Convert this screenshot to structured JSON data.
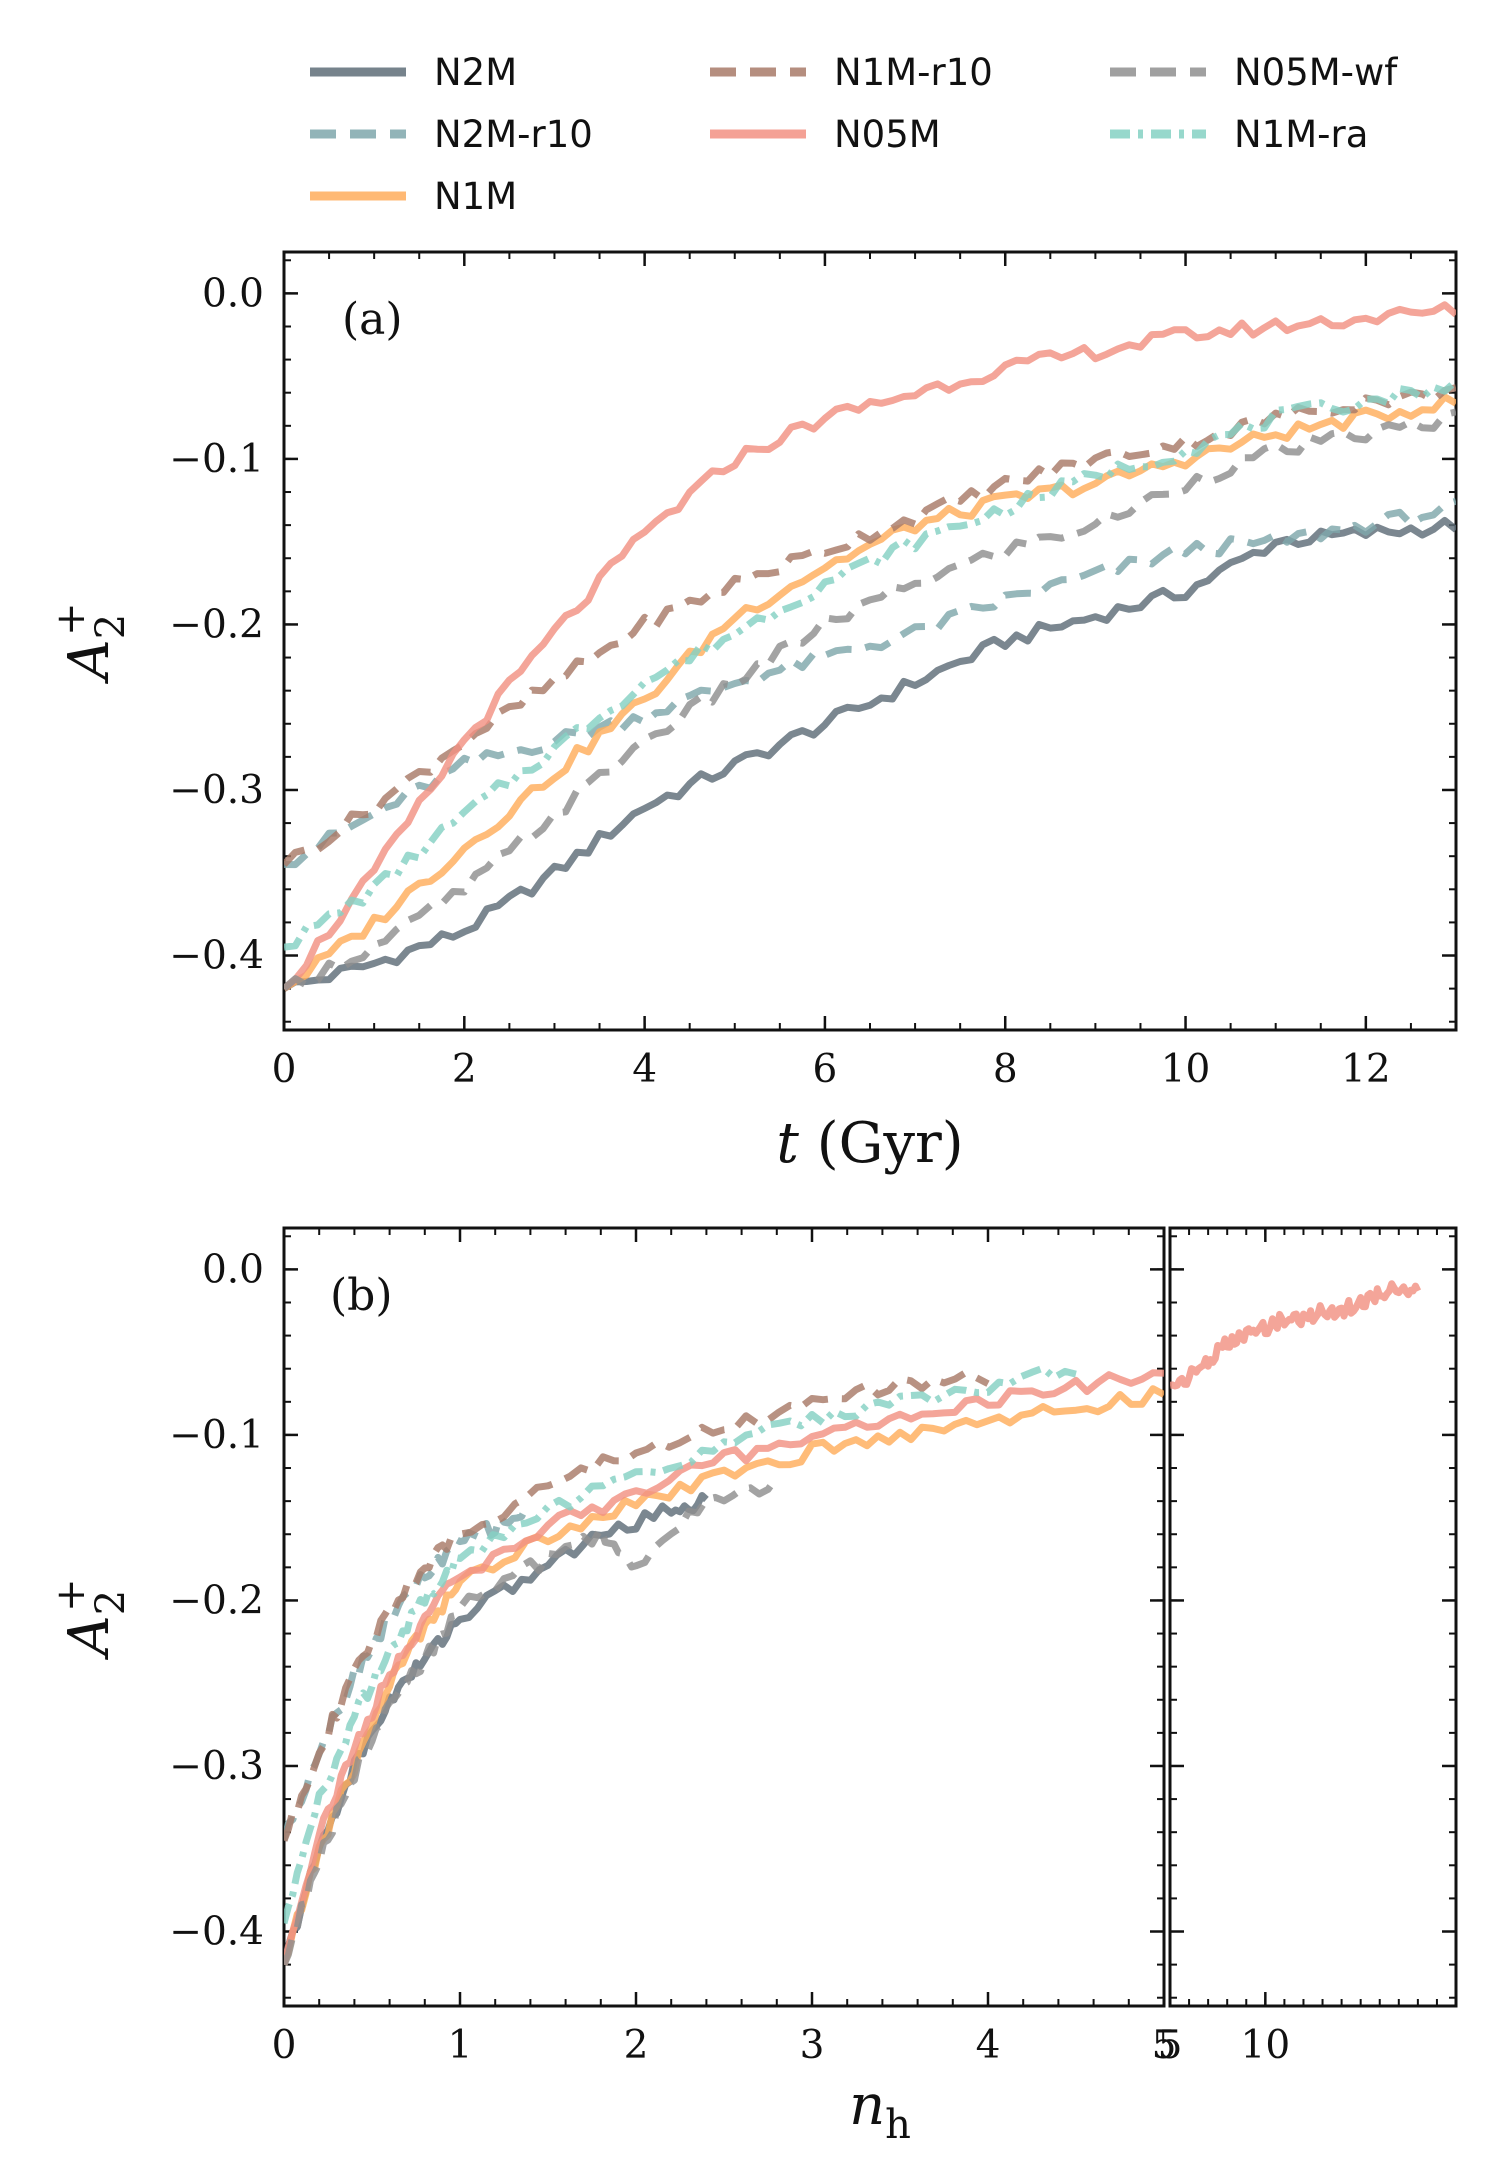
{
  "colors": {
    "N2M": "#5e6d78",
    "N2M-r10": "#7fa7ab",
    "N1M": "#ffad5c",
    "N1M-r10": "#a87a68",
    "N05M": "#f29183",
    "N05M-wf": "#8f8f8f",
    "N1M-ra": "#85d1c3"
  },
  "legend": {
    "col1": [
      "N2M",
      "N2M-r10",
      "N1M"
    ],
    "col2": [
      "N1M-r10",
      "N05M"
    ],
    "col3": [
      "N05M-wf",
      "N1M-ra"
    ]
  },
  "chart_data": [
    {
      "type": "line",
      "panel_label": "(a)",
      "xlabel": "t (Gyr)",
      "ylabel": "A2+",
      "xlim": [
        0,
        13
      ],
      "ylim": [
        -0.445,
        0.025
      ],
      "xticks": [
        "0",
        "2",
        "4",
        "6",
        "8",
        "10",
        "12"
      ],
      "yticks": [
        "0.0",
        "−0.1",
        "−0.2",
        "−0.3",
        "−0.4"
      ],
      "series": [
        {
          "name": "N2M",
          "style": "solid",
          "x": [
            0,
            1,
            2,
            3,
            4,
            5,
            6,
            7,
            8,
            9,
            10,
            11,
            12,
            13
          ],
          "y": [
            -0.42,
            -0.405,
            -0.385,
            -0.35,
            -0.31,
            -0.285,
            -0.26,
            -0.235,
            -0.21,
            -0.195,
            -0.18,
            -0.15,
            -0.145,
            -0.14
          ]
        },
        {
          "name": "N2M-r10",
          "style": "dashed",
          "x": [
            0,
            1,
            2,
            3,
            4,
            5,
            6,
            7,
            8,
            9,
            10,
            11,
            12,
            13
          ],
          "y": [
            -0.345,
            -0.315,
            -0.285,
            -0.27,
            -0.255,
            -0.235,
            -0.22,
            -0.205,
            -0.185,
            -0.17,
            -0.155,
            -0.15,
            -0.14,
            -0.13
          ]
        },
        {
          "name": "N1M",
          "style": "solid",
          "x": [
            0,
            1,
            2,
            3,
            4,
            5,
            6,
            7,
            8,
            9,
            10,
            11,
            12,
            13
          ],
          "y": [
            -0.42,
            -0.38,
            -0.335,
            -0.29,
            -0.245,
            -0.195,
            -0.165,
            -0.14,
            -0.125,
            -0.115,
            -0.1,
            -0.085,
            -0.075,
            -0.065
          ]
        },
        {
          "name": "N1M-r10",
          "style": "dashed",
          "x": [
            0,
            1,
            2,
            3,
            4,
            5,
            6,
            7,
            8,
            9,
            10,
            11,
            12,
            13
          ],
          "y": [
            -0.345,
            -0.31,
            -0.27,
            -0.235,
            -0.2,
            -0.175,
            -0.155,
            -0.135,
            -0.115,
            -0.1,
            -0.09,
            -0.075,
            -0.065,
            -0.06
          ]
        },
        {
          "name": "N05M",
          "style": "solid",
          "x": [
            0,
            1,
            2,
            3,
            4,
            5,
            6,
            7,
            8,
            9,
            10,
            11,
            12,
            13
          ],
          "y": [
            -0.42,
            -0.35,
            -0.27,
            -0.205,
            -0.145,
            -0.1,
            -0.075,
            -0.06,
            -0.045,
            -0.035,
            -0.025,
            -0.02,
            -0.015,
            -0.01
          ]
        },
        {
          "name": "N05M-wf",
          "style": "dashed",
          "x": [
            0,
            1,
            2,
            3,
            4,
            5,
            6,
            7,
            8,
            9,
            10,
            11,
            12,
            13
          ],
          "y": [
            -0.42,
            -0.395,
            -0.36,
            -0.315,
            -0.27,
            -0.235,
            -0.2,
            -0.175,
            -0.155,
            -0.14,
            -0.115,
            -0.095,
            -0.085,
            -0.075
          ]
        },
        {
          "name": "N1M-ra",
          "style": "dashdot",
          "x": [
            0,
            1,
            2,
            3,
            4,
            5,
            6,
            7,
            8,
            9,
            10,
            11,
            12,
            13
          ],
          "y": [
            -0.395,
            -0.36,
            -0.315,
            -0.275,
            -0.235,
            -0.205,
            -0.175,
            -0.15,
            -0.13,
            -0.11,
            -0.095,
            -0.075,
            -0.065,
            -0.055
          ]
        }
      ]
    },
    {
      "type": "line",
      "panel_label": "(b)",
      "xlabel": "n_h",
      "ylabel": "A2+",
      "xlim": [
        0,
        5
      ],
      "xlim_right": [
        5,
        20
      ],
      "ylim": [
        -0.445,
        0.025
      ],
      "xticks": [
        "0",
        "1",
        "2",
        "3",
        "4",
        "5"
      ],
      "xticks_right": [
        "5",
        "10"
      ],
      "yticks": [
        "0.0",
        "−0.1",
        "−0.2",
        "−0.3",
        "−0.4"
      ],
      "series": [
        {
          "name": "N2M",
          "style": "solid",
          "x": [
            0,
            0.2,
            0.4,
            0.6,
            0.8,
            1.0,
            1.4,
            1.8,
            2.2,
            2.4
          ],
          "y": [
            -0.42,
            -0.35,
            -0.3,
            -0.26,
            -0.235,
            -0.21,
            -0.185,
            -0.16,
            -0.145,
            -0.14
          ]
        },
        {
          "name": "N2M-r10",
          "style": "dashed",
          "x": [
            0,
            0.2,
            0.4,
            0.6,
            0.8,
            1.0,
            1.2,
            1.4
          ],
          "y": [
            -0.345,
            -0.29,
            -0.245,
            -0.21,
            -0.185,
            -0.165,
            -0.155,
            -0.145
          ]
        },
        {
          "name": "N1M",
          "style": "solid",
          "x": [
            0,
            0.2,
            0.4,
            0.6,
            0.8,
            1.0,
            1.5,
            2.0,
            2.5,
            3.0,
            3.5,
            4.0,
            4.5,
            5.0
          ],
          "y": [
            -0.42,
            -0.35,
            -0.3,
            -0.25,
            -0.215,
            -0.19,
            -0.16,
            -0.14,
            -0.125,
            -0.11,
            -0.1,
            -0.09,
            -0.085,
            -0.075
          ]
        },
        {
          "name": "N1M-r10",
          "style": "dashed",
          "x": [
            0,
            0.2,
            0.4,
            0.6,
            0.8,
            1.0,
            1.5,
            2.0,
            2.5,
            3.0,
            3.5,
            4.0
          ],
          "y": [
            -0.345,
            -0.29,
            -0.245,
            -0.205,
            -0.18,
            -0.16,
            -0.13,
            -0.11,
            -0.095,
            -0.08,
            -0.07,
            -0.065
          ]
        },
        {
          "name": "N05M",
          "style": "solid",
          "x": [
            0,
            0.2,
            0.4,
            0.6,
            0.8,
            1.0,
            1.5,
            2.0,
            2.5,
            3.0,
            3.5,
            4.0,
            4.5,
            5.0
          ],
          "y": [
            -0.42,
            -0.34,
            -0.29,
            -0.245,
            -0.21,
            -0.185,
            -0.155,
            -0.135,
            -0.115,
            -0.1,
            -0.09,
            -0.08,
            -0.07,
            -0.065
          ]
        },
        {
          "name": "N05M-wf",
          "style": "dashed",
          "x": [
            0,
            0.2,
            0.4,
            0.6,
            0.8,
            1.0,
            1.4,
            1.8,
            2.0,
            2.4,
            2.8
          ],
          "y": [
            -0.42,
            -0.355,
            -0.305,
            -0.265,
            -0.235,
            -0.205,
            -0.18,
            -0.16,
            -0.18,
            -0.14,
            -0.13
          ]
        },
        {
          "name": "N1M-ra",
          "style": "dashdot",
          "x": [
            0,
            0.2,
            0.4,
            0.6,
            0.8,
            1.0,
            1.5,
            2.0,
            2.5,
            3.0,
            3.5,
            4.0,
            4.5
          ],
          "y": [
            -0.395,
            -0.32,
            -0.27,
            -0.23,
            -0.2,
            -0.175,
            -0.145,
            -0.125,
            -0.105,
            -0.09,
            -0.08,
            -0.07,
            -0.06
          ]
        },
        {
          "name": "N05M",
          "style": "solid",
          "panel": "right",
          "x": [
            5,
            6,
            7,
            8,
            9,
            10,
            11,
            12,
            13,
            14,
            15,
            16,
            17,
            18
          ],
          "y": [
            -0.07,
            -0.065,
            -0.055,
            -0.045,
            -0.04,
            -0.035,
            -0.03,
            -0.03,
            -0.025,
            -0.025,
            -0.02,
            -0.015,
            -0.01,
            -0.015
          ]
        }
      ]
    }
  ]
}
